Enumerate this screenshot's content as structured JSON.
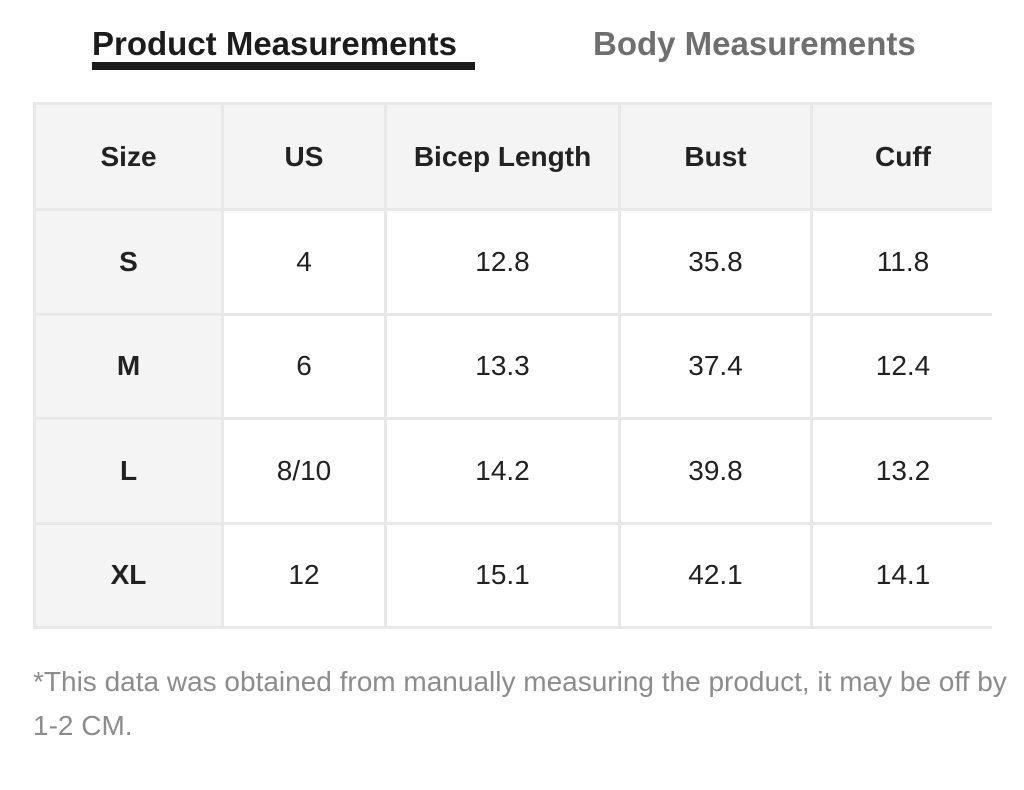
{
  "tabs": {
    "product": "Product Measurements",
    "body": "Body Measurements",
    "active": "product"
  },
  "table": {
    "columns": [
      "Size",
      "US",
      "Bicep Length",
      "Bust",
      "Cuff"
    ],
    "rows": [
      [
        "S",
        "4",
        "12.8",
        "35.8",
        "11.8"
      ],
      [
        "M",
        "6",
        "13.3",
        "37.4",
        "12.4"
      ],
      [
        "L",
        "8/10",
        "14.2",
        "39.8",
        "13.2"
      ],
      [
        "XL",
        "12",
        "15.1",
        "42.1",
        "14.1"
      ]
    ]
  },
  "note": "*This data was obtained from manually measuring the product, it may be off by 1-2 CM.",
  "colors": {
    "active_tab": "#1c1c1c",
    "inactive_tab": "#6f6f6f",
    "header_bg": "#f4f4f4",
    "border": "#e8e8e8",
    "note_text": "#8c8c8c"
  }
}
